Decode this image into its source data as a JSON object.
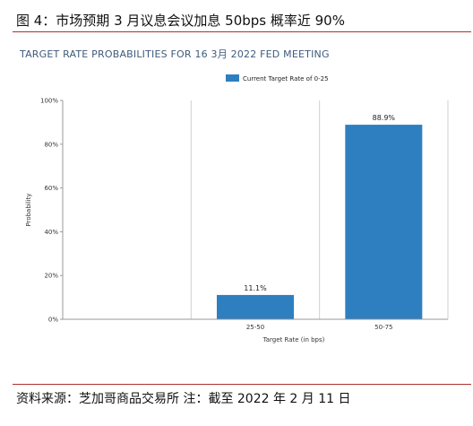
{
  "figure": {
    "title": "图 4：市场预期 3 月议息会议加息 50bps 概率近 90%",
    "source": "资料来源：芝加哥商品交易所 注：截至 2022 年 2 月 11 日"
  },
  "colors": {
    "bar": "#2e7fbf",
    "rule": "#b03030",
    "chart_title": "#3f5b7c"
  },
  "chart_data": {
    "type": "bar",
    "title": "TARGET RATE PROBABILITIES FOR 16 3月 2022 FED MEETING",
    "xlabel": "Target Rate (in bps)",
    "ylabel": "Probability",
    "categories": [
      "",
      "25-50",
      "50-75"
    ],
    "series": [
      {
        "name": "Current Target Rate of 0-25",
        "values": [
          0,
          11.1,
          88.9
        ]
      }
    ],
    "data_labels": [
      "",
      "11.1%",
      "88.9%"
    ],
    "ylim": [
      0,
      100
    ],
    "yticks": [
      0,
      20,
      40,
      60,
      80,
      100
    ],
    "ytick_labels": [
      "0%",
      "20%",
      "40%",
      "60%",
      "80%",
      "100%"
    ],
    "grid": "vertical",
    "legend": "top-center"
  }
}
